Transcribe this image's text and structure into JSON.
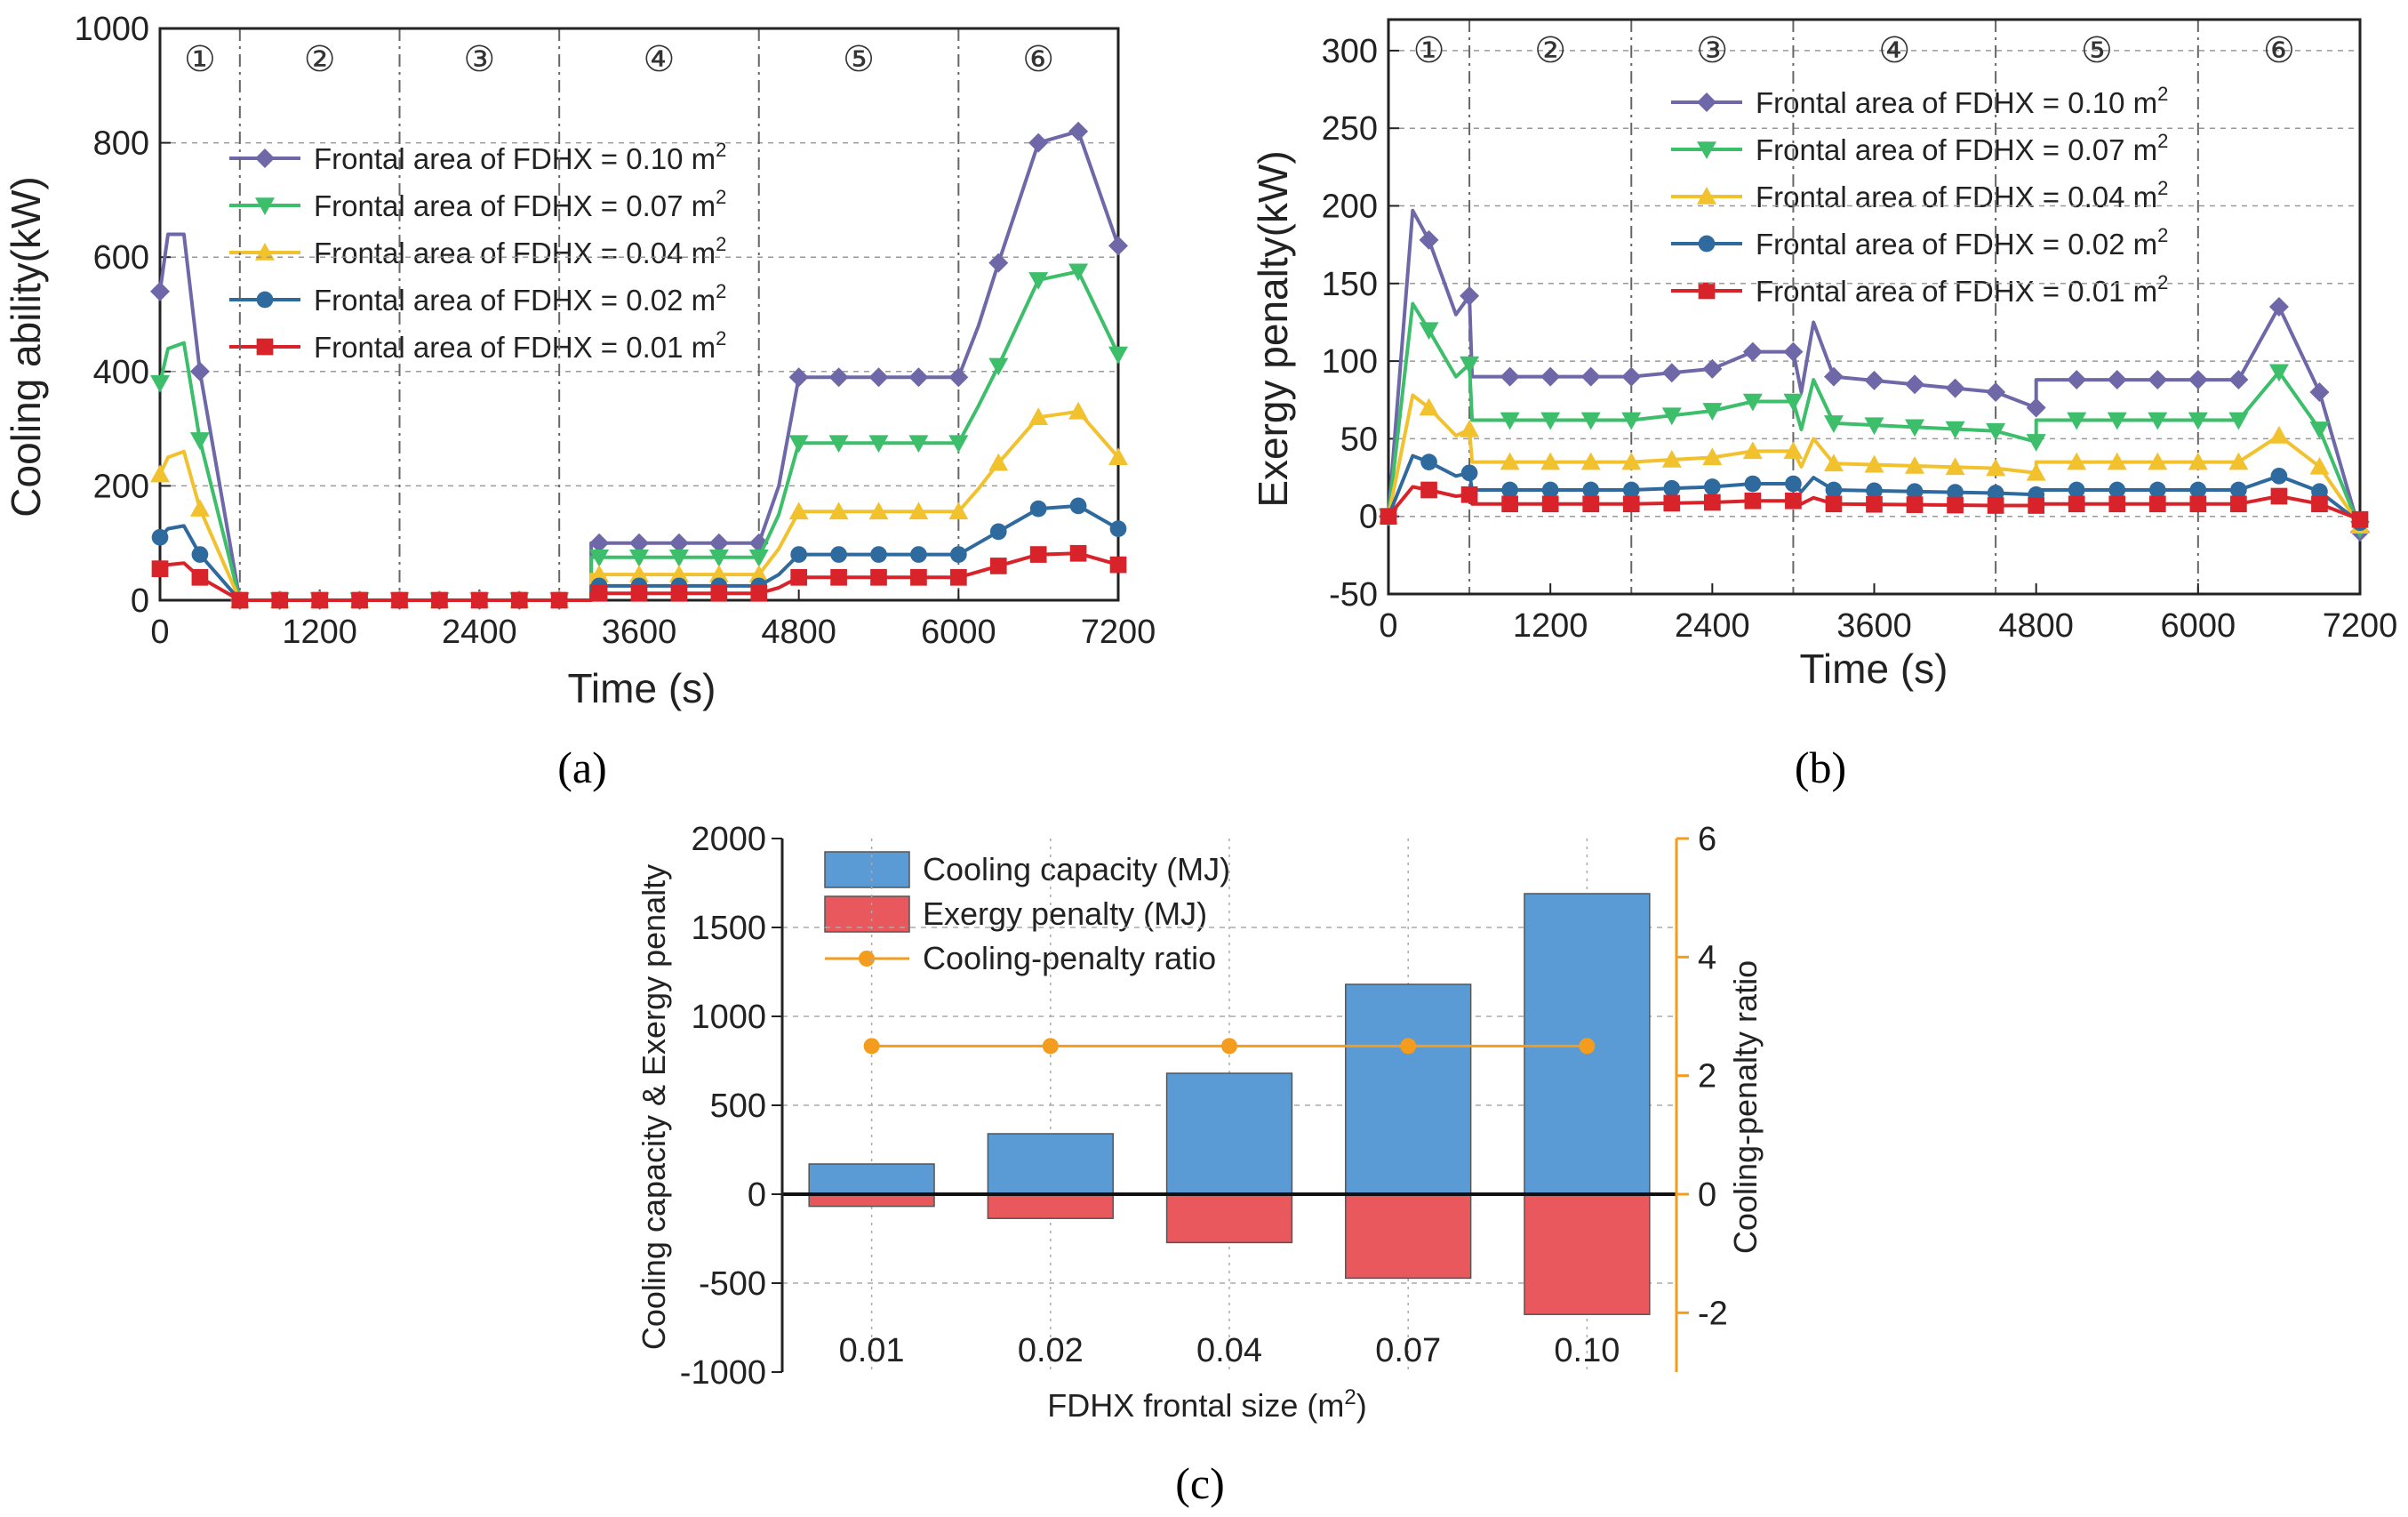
{
  "colors": {
    "s010": "#6E68A8",
    "s007": "#3DBE6B",
    "s004": "#F2C12E",
    "s002": "#2F6A9E",
    "s001": "#D9232A",
    "bar_cool": "#5B9BD5",
    "bar_pen": "#E8585C",
    "ratio": "#F39C1E",
    "axis_right": "#F39C1E"
  },
  "chart_data": [
    {
      "id": "a",
      "type": "line",
      "caption": "(a)",
      "xlabel": "Time (s)",
      "ylabel": "Cooling ability(kW)",
      "xlim": [
        0,
        7200
      ],
      "ylim": [
        0,
        1000
      ],
      "xticks": [
        "0",
        "1200",
        "2400",
        "3600",
        "4800",
        "6000",
        "7200"
      ],
      "yticks": [
        "0",
        "200",
        "400",
        "600",
        "800",
        "1000"
      ],
      "phase_labels": [
        "①",
        "②",
        "③",
        "④",
        "⑤",
        "⑥"
      ],
      "phase_bounds": [
        600,
        1800,
        3000,
        4500,
        6000
      ],
      "series": [
        {
          "name": "Frontal area of FDHX = 0.10 m",
          "sup": "2",
          "color_key": "s010",
          "marker": "diamond",
          "points": [
            [
              0,
              540
            ],
            [
              60,
              640
            ],
            [
              180,
              640
            ],
            [
              300,
              400
            ],
            [
              600,
              0
            ],
            [
              3240,
              0
            ],
            [
              3240,
              100
            ],
            [
              4500,
              100
            ],
            [
              4650,
              200
            ],
            [
              4800,
              390
            ],
            [
              6000,
              390
            ],
            [
              6150,
              480
            ],
            [
              6300,
              590
            ],
            [
              6600,
              800
            ],
            [
              6900,
              820
            ],
            [
              7200,
              620
            ]
          ]
        },
        {
          "name": "Frontal area of FDHX = 0.07 m",
          "sup": "2",
          "color_key": "s007",
          "marker": "tri-down",
          "points": [
            [
              0,
              380
            ],
            [
              60,
              440
            ],
            [
              180,
              450
            ],
            [
              300,
              280
            ],
            [
              600,
              0
            ],
            [
              3240,
              0
            ],
            [
              3240,
              75
            ],
            [
              4500,
              75
            ],
            [
              4650,
              150
            ],
            [
              4800,
              275
            ],
            [
              6000,
              275
            ],
            [
              6150,
              340
            ],
            [
              6300,
              410
            ],
            [
              6600,
              560
            ],
            [
              6900,
              575
            ],
            [
              7200,
              430
            ]
          ]
        },
        {
          "name": "Frontal area of FDHX = 0.04 m",
          "sup": "2",
          "color_key": "s004",
          "marker": "tri-up",
          "points": [
            [
              0,
              220
            ],
            [
              60,
              250
            ],
            [
              180,
              260
            ],
            [
              300,
              160
            ],
            [
              600,
              0
            ],
            [
              3240,
              0
            ],
            [
              3240,
              45
            ],
            [
              4500,
              45
            ],
            [
              4650,
              90
            ],
            [
              4800,
              155
            ],
            [
              6000,
              155
            ],
            [
              6150,
              195
            ],
            [
              6300,
              240
            ],
            [
              6600,
              320
            ],
            [
              6900,
              330
            ],
            [
              7200,
              250
            ]
          ]
        },
        {
          "name": "Frontal area of FDHX = 0.02 m",
          "sup": "2",
          "color_key": "s002",
          "marker": "circle",
          "points": [
            [
              0,
              110
            ],
            [
              60,
              125
            ],
            [
              180,
              130
            ],
            [
              300,
              80
            ],
            [
              600,
              0
            ],
            [
              3240,
              0
            ],
            [
              3240,
              25
            ],
            [
              4500,
              25
            ],
            [
              4650,
              45
            ],
            [
              4800,
              80
            ],
            [
              6000,
              80
            ],
            [
              6150,
              100
            ],
            [
              6300,
              120
            ],
            [
              6600,
              160
            ],
            [
              6900,
              165
            ],
            [
              7200,
              125
            ]
          ]
        },
        {
          "name": "Frontal area of FDHX = 0.01 m",
          "sup": "2",
          "color_key": "s001",
          "marker": "square",
          "points": [
            [
              0,
              55
            ],
            [
              60,
              62
            ],
            [
              180,
              65
            ],
            [
              300,
              40
            ],
            [
              600,
              0
            ],
            [
              3240,
              0
            ],
            [
              3240,
              12
            ],
            [
              4500,
              12
            ],
            [
              4650,
              22
            ],
            [
              4800,
              40
            ],
            [
              6000,
              40
            ],
            [
              6150,
              50
            ],
            [
              6300,
              60
            ],
            [
              6600,
              80
            ],
            [
              6900,
              82
            ],
            [
              7200,
              62
            ]
          ]
        }
      ]
    },
    {
      "id": "b",
      "type": "line",
      "caption": "(b)",
      "xlabel": "Time (s)",
      "ylabel": "Exergy penalty(kW)",
      "xlim": [
        0,
        7200
      ],
      "ylim": [
        -50,
        320
      ],
      "xticks": [
        "0",
        "1200",
        "2400",
        "3600",
        "4800",
        "6000",
        "7200"
      ],
      "yticks": [
        "-50",
        "0",
        "50",
        "100",
        "150",
        "200",
        "250",
        "300"
      ],
      "phase_labels": [
        "①",
        "②",
        "③",
        "④",
        "⑤",
        "⑥"
      ],
      "phase_bounds": [
        600,
        1800,
        3000,
        4500,
        6000
      ],
      "series": [
        {
          "name": "Frontal area of FDHX = 0.10 m",
          "sup": "2",
          "color_key": "s010",
          "marker": "diamond",
          "points": [
            [
              0,
              0
            ],
            [
              180,
              197
            ],
            [
              300,
              178
            ],
            [
              500,
              130
            ],
            [
              600,
              142
            ],
            [
              620,
              90
            ],
            [
              1800,
              90
            ],
            [
              2400,
              95
            ],
            [
              2700,
              106
            ],
            [
              3000,
              106
            ],
            [
              3060,
              80
            ],
            [
              3150,
              125
            ],
            [
              3300,
              90
            ],
            [
              4500,
              80
            ],
            [
              4800,
              70
            ],
            [
              4800,
              88
            ],
            [
              6000,
              88
            ],
            [
              6300,
              88
            ],
            [
              6600,
              135
            ],
            [
              6900,
              80
            ],
            [
              7200,
              -10
            ]
          ]
        },
        {
          "name": "Frontal area of FDHX = 0.07 m",
          "sup": "2",
          "color_key": "s007",
          "marker": "tri-down",
          "points": [
            [
              0,
              0
            ],
            [
              180,
              137
            ],
            [
              300,
              120
            ],
            [
              500,
              90
            ],
            [
              600,
              98
            ],
            [
              620,
              62
            ],
            [
              1800,
              62
            ],
            [
              2400,
              68
            ],
            [
              2700,
              74
            ],
            [
              3000,
              74
            ],
            [
              3060,
              56
            ],
            [
              3150,
              88
            ],
            [
              3300,
              60
            ],
            [
              4500,
              55
            ],
            [
              4800,
              48
            ],
            [
              4800,
              62
            ],
            [
              6000,
              62
            ],
            [
              6300,
              62
            ],
            [
              6600,
              93
            ],
            [
              6900,
              56
            ],
            [
              7200,
              -8
            ]
          ]
        },
        {
          "name": "Frontal area of FDHX = 0.04 m",
          "sup": "2",
          "color_key": "s004",
          "marker": "tri-up",
          "points": [
            [
              0,
              0
            ],
            [
              180,
              78
            ],
            [
              300,
              70
            ],
            [
              500,
              52
            ],
            [
              600,
              56
            ],
            [
              620,
              35
            ],
            [
              1800,
              35
            ],
            [
              2400,
              38
            ],
            [
              2700,
              42
            ],
            [
              3000,
              42
            ],
            [
              3060,
              32
            ],
            [
              3150,
              50
            ],
            [
              3300,
              34
            ],
            [
              4500,
              31
            ],
            [
              4800,
              28
            ],
            [
              4800,
              35
            ],
            [
              6000,
              35
            ],
            [
              6300,
              35
            ],
            [
              6600,
              52
            ],
            [
              6900,
              32
            ],
            [
              7200,
              -6
            ]
          ]
        },
        {
          "name": "Frontal area of FDHX = 0.02 m",
          "sup": "2",
          "color_key": "s002",
          "marker": "circle",
          "points": [
            [
              0,
              0
            ],
            [
              180,
              39
            ],
            [
              300,
              35
            ],
            [
              500,
              26
            ],
            [
              600,
              28
            ],
            [
              620,
              17
            ],
            [
              1800,
              17
            ],
            [
              2400,
              19
            ],
            [
              2700,
              21
            ],
            [
              3000,
              21
            ],
            [
              3060,
              16
            ],
            [
              3150,
              25
            ],
            [
              3300,
              17
            ],
            [
              4500,
              15
            ],
            [
              4800,
              14
            ],
            [
              4800,
              17
            ],
            [
              6000,
              17
            ],
            [
              6300,
              17
            ],
            [
              6600,
              26
            ],
            [
              6900,
              16
            ],
            [
              7200,
              -4
            ]
          ]
        },
        {
          "name": "Frontal area of FDHX = 0.01 m",
          "sup": "2",
          "color_key": "s001",
          "marker": "square",
          "points": [
            [
              0,
              0
            ],
            [
              180,
              19
            ],
            [
              300,
              17
            ],
            [
              500,
              13
            ],
            [
              600,
              14
            ],
            [
              620,
              8
            ],
            [
              1800,
              8
            ],
            [
              2400,
              9
            ],
            [
              2700,
              10
            ],
            [
              3000,
              10
            ],
            [
              3060,
              8
            ],
            [
              3150,
              12
            ],
            [
              3300,
              8
            ],
            [
              4500,
              7
            ],
            [
              4800,
              7
            ],
            [
              4800,
              8
            ],
            [
              6000,
              8
            ],
            [
              6300,
              8
            ],
            [
              6600,
              13
            ],
            [
              6900,
              8
            ],
            [
              7200,
              -2
            ]
          ]
        }
      ]
    },
    {
      "id": "c",
      "type": "bar",
      "caption": "(c)",
      "xlabel": "FDHX frontal size (m",
      "xlabel_sup": "2",
      "xlabel_end": ")",
      "ylabel": "Cooling capacity & Exergy penalty",
      "ylabel_right": "Cooling-penalty ratio",
      "categories": [
        "0.01",
        "0.02",
        "0.04",
        "0.07",
        "0.10"
      ],
      "ylim": [
        -1000,
        2000
      ],
      "ylim_right": [
        -3,
        6
      ],
      "yticks": [
        "-1000",
        "-500",
        "0",
        "500",
        "1000",
        "1500",
        "2000"
      ],
      "yticks_right": [
        "-2",
        "0",
        "2",
        "4",
        "6"
      ],
      "series": [
        {
          "name": "Cooling capacity (MJ)",
          "color_key": "bar_cool",
          "values": [
            170,
            340,
            680,
            1180,
            1690
          ]
        },
        {
          "name": "Exergy penalty (MJ)",
          "color_key": "bar_pen",
          "values": [
            -68,
            -136,
            -272,
            -472,
            -676
          ]
        },
        {
          "name": "Cooling-penalty ratio",
          "color_key": "ratio",
          "values": [
            2.5,
            2.5,
            2.5,
            2.5,
            2.5
          ]
        }
      ]
    }
  ]
}
